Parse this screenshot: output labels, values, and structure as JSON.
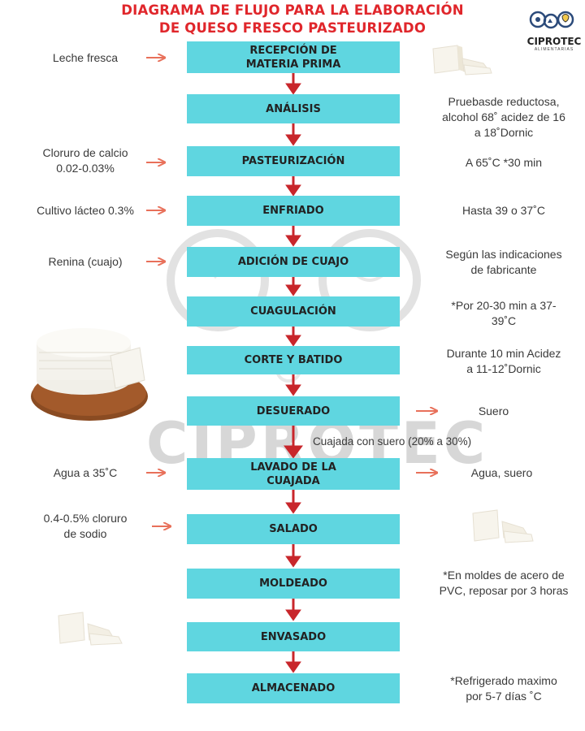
{
  "title": {
    "line1": "DIAGRAMA DE FLUJO PARA LA ELABORACIÓN",
    "line2": "DE QUESO FRESCO PASTEURIZADO"
  },
  "logo": {
    "name": "CIPROTEC",
    "subtitle": "ALIMENTARIAS"
  },
  "watermark": {
    "text": "CIPROTEC"
  },
  "steps": [
    "RECEPCIÓN DE\nMATERIA PRIMA",
    "ANÁLISIS",
    "PASTEURIZACIÓN",
    "ENFRIADO",
    "ADICIÓN DE CUAJO",
    "CUAGULACIÓN",
    "CORTE Y BATIDO",
    "DESUERADO",
    "LAVADO DE LA\nCUAJADA",
    "SALADO",
    "MOLDEADO",
    "ENVASADO",
    "ALMACENADO"
  ],
  "inputs": {
    "leche": "Leche fresca",
    "cloruro_calcio": "Cloruro de calcio\n0.02-0.03%",
    "cultivo": "Cultivo lácteo 0.3%",
    "renina": "Renina (cuajo)",
    "agua": "Agua a 35˚C",
    "cloruro_sodio": "0.4-0.5% cloruro\nde sodio"
  },
  "conditions": {
    "analisis": "Pruebasde reductosa,\nalcohol 68˚ acidez de 16\na 18˚Dornic",
    "pasteurizacion": "A 65˚C *30 min",
    "enfriado": "Hasta 39 o 37˚C",
    "cuajo": "Según las indicaciones\nde fabricante",
    "cuagulacion": "*Por 20-30 min a 37-\n39˚C",
    "corte": "Durante 10 min Acidez\na 11-12˚Dornic",
    "moldeado": "*En moldes de acero de\nPVC, reposar por 3 horas",
    "almacenado": "*Refrigerado maximo\npor 5-7 días ˚C"
  },
  "outputs": {
    "suero": "Suero",
    "agua_suero": "Agua, suero"
  },
  "mid_note": "Cuajada con suero (20% a 30%)",
  "colors": {
    "title": "#e0262b",
    "box": "#5fd6e0",
    "arrow": "#c8262b",
    "side_arrow": "#e8705a"
  }
}
